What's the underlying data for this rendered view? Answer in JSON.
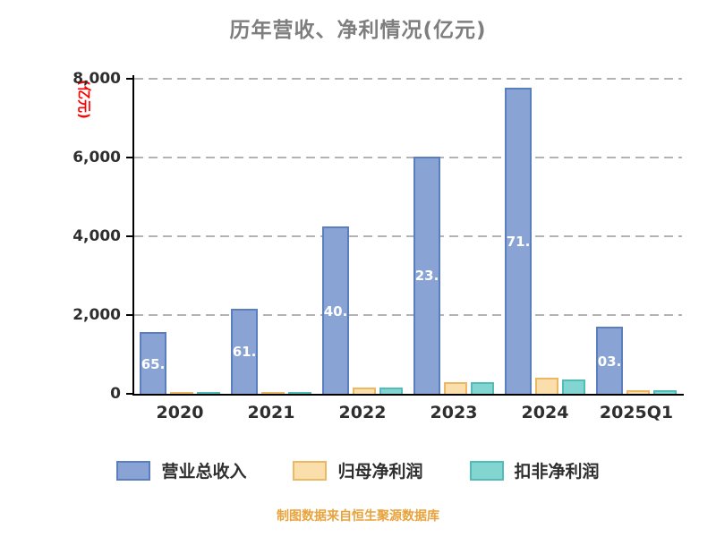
{
  "chart_data": {
    "type": "bar",
    "title": "历年营收、净利情况(亿元)",
    "title_color": "#7e7e7e",
    "ylabel": "(亿元)",
    "ylabel_color": "#ff0000",
    "categories": [
      "2020",
      "2021",
      "2022",
      "2023",
      "2024",
      "2025Q1"
    ],
    "series": [
      {
        "name": "营业总收入",
        "color": "#89a3d4",
        "border": "#5b7fbe",
        "values": [
          1565.98,
          2161.42,
          4240.61,
          6023.15,
          7771.02,
          1703.64
        ]
      },
      {
        "name": "归母净利润",
        "color": "#fadfad",
        "border": "#ecb865",
        "values": [
          42.34,
          30.45,
          166.22,
          300.41,
          402.54,
          91.55
        ]
      },
      {
        "name": "扣非净利润",
        "color": "#82d5d0",
        "border": "#52bdb7",
        "values": [
          29.54,
          12.55,
          156.38,
          284.62,
          369.83,
          81.72
        ]
      }
    ],
    "ylim": [
      0,
      8000
    ],
    "yticks": [
      0,
      2000,
      4000,
      6000,
      8000
    ],
    "grid": "horizontal-dashed",
    "legend_position": "bottom",
    "bar_value_labels": {
      "series_index": 0,
      "color": "#ffffff"
    }
  },
  "footer": {
    "text": "制图数据来自恒生聚源数据库",
    "color": "#e8a33d"
  }
}
